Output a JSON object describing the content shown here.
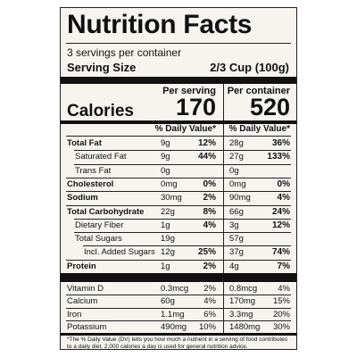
{
  "title": "Nutrition Facts",
  "servings_per_container": "3 servings per container",
  "serving_size_label": "Serving Size",
  "serving_size_value": "2/3 Cup (100g)",
  "per_serving_label": "Per serving",
  "per_container_label": "Per container",
  "calories_label": "Calories",
  "calories_per_serving": "170",
  "calories_per_container": "520",
  "dv_header": "% Daily Value*",
  "nutrients": [
    {
      "name": "Total Fat",
      "bold": true,
      "indent": 0,
      "s_amt": "9g",
      "s_dv": "12%",
      "c_amt": "28g",
      "c_dv": "36%"
    },
    {
      "name": "Saturated Fat",
      "bold": false,
      "indent": 1,
      "s_amt": "9g",
      "s_dv": "44%",
      "c_amt": "27g",
      "c_dv": "133%"
    },
    {
      "name": "Trans Fat",
      "bold": false,
      "indent": 1,
      "s_amt": "0g",
      "s_dv": "",
      "c_amt": "0g",
      "c_dv": ""
    },
    {
      "name": "Cholesterol",
      "bold": true,
      "indent": 0,
      "s_amt": "0mg",
      "s_dv": "0%",
      "c_amt": "0mg",
      "c_dv": "0%"
    },
    {
      "name": "Sodium",
      "bold": true,
      "indent": 0,
      "s_amt": "30mg",
      "s_dv": "2%",
      "c_amt": "90mg",
      "c_dv": "4%"
    },
    {
      "name": "Total Carbohydrate",
      "bold": true,
      "indent": 0,
      "s_amt": "22g",
      "s_dv": "8%",
      "c_amt": "66g",
      "c_dv": "24%"
    },
    {
      "name": "Dietary Fiber",
      "bold": false,
      "indent": 1,
      "s_amt": "1g",
      "s_dv": "4%",
      "c_amt": "3g",
      "c_dv": "12%"
    },
    {
      "name": "Total Sugars",
      "bold": false,
      "indent": 1,
      "s_amt": "19g",
      "s_dv": "",
      "c_amt": "57g",
      "c_dv": ""
    },
    {
      "name": "Incl. Added Sugars",
      "bold": false,
      "indent": 2,
      "s_amt": "12g",
      "s_dv": "25%",
      "c_amt": "37g",
      "c_dv": "74%"
    },
    {
      "name": "Protein",
      "bold": true,
      "indent": 0,
      "s_amt": "1g",
      "s_dv": "2%",
      "c_amt": "4g",
      "c_dv": "7%"
    }
  ],
  "vitamins": [
    {
      "name": "Vitamin D",
      "s_amt": "0.3mcg",
      "s_dv": "2%",
      "c_amt": "0.8mcg",
      "c_dv": "4%"
    },
    {
      "name": "Calcium",
      "s_amt": "60g",
      "s_dv": "4%",
      "c_amt": "170mg",
      "c_dv": "15%"
    },
    {
      "name": "Iron",
      "s_amt": "1.1mg",
      "s_dv": "6%",
      "c_amt": "3.3mg",
      "c_dv": "20%"
    },
    {
      "name": "Potassium",
      "s_amt": "490mg",
      "s_dv": "10%",
      "c_amt": "1480mg",
      "c_dv": "30%"
    }
  ],
  "footnote": "*The % Daily Value (DV) tells you how much a nutrient in a serving of food contributes to a daily diet. 2,000 calories a day is used for general nutrition advice."
}
